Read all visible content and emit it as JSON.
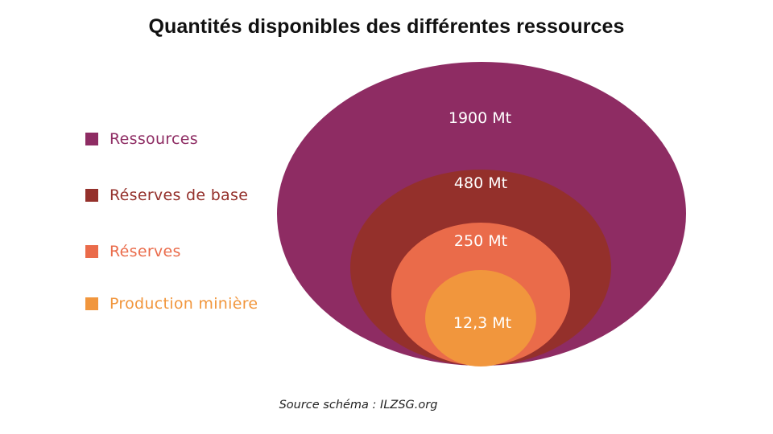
{
  "title": "Quantités disponibles des différentes ressources",
  "source": "Source schéma : ILZSG.org",
  "levels": [
    {
      "key": "ressources",
      "label": "Ressources",
      "value": "1900 Mt",
      "color": "#8e2c63"
    },
    {
      "key": "reserves-de-base",
      "label": "Réserves de base",
      "value": "480 Mt",
      "color": "#94302b"
    },
    {
      "key": "reserves",
      "label": "Réserves",
      "value": "250 Mt",
      "color": "#ea6b4a"
    },
    {
      "key": "production-miniere",
      "label": "Production minière",
      "value": "12,3 Mt",
      "color": "#f1963d"
    }
  ]
}
